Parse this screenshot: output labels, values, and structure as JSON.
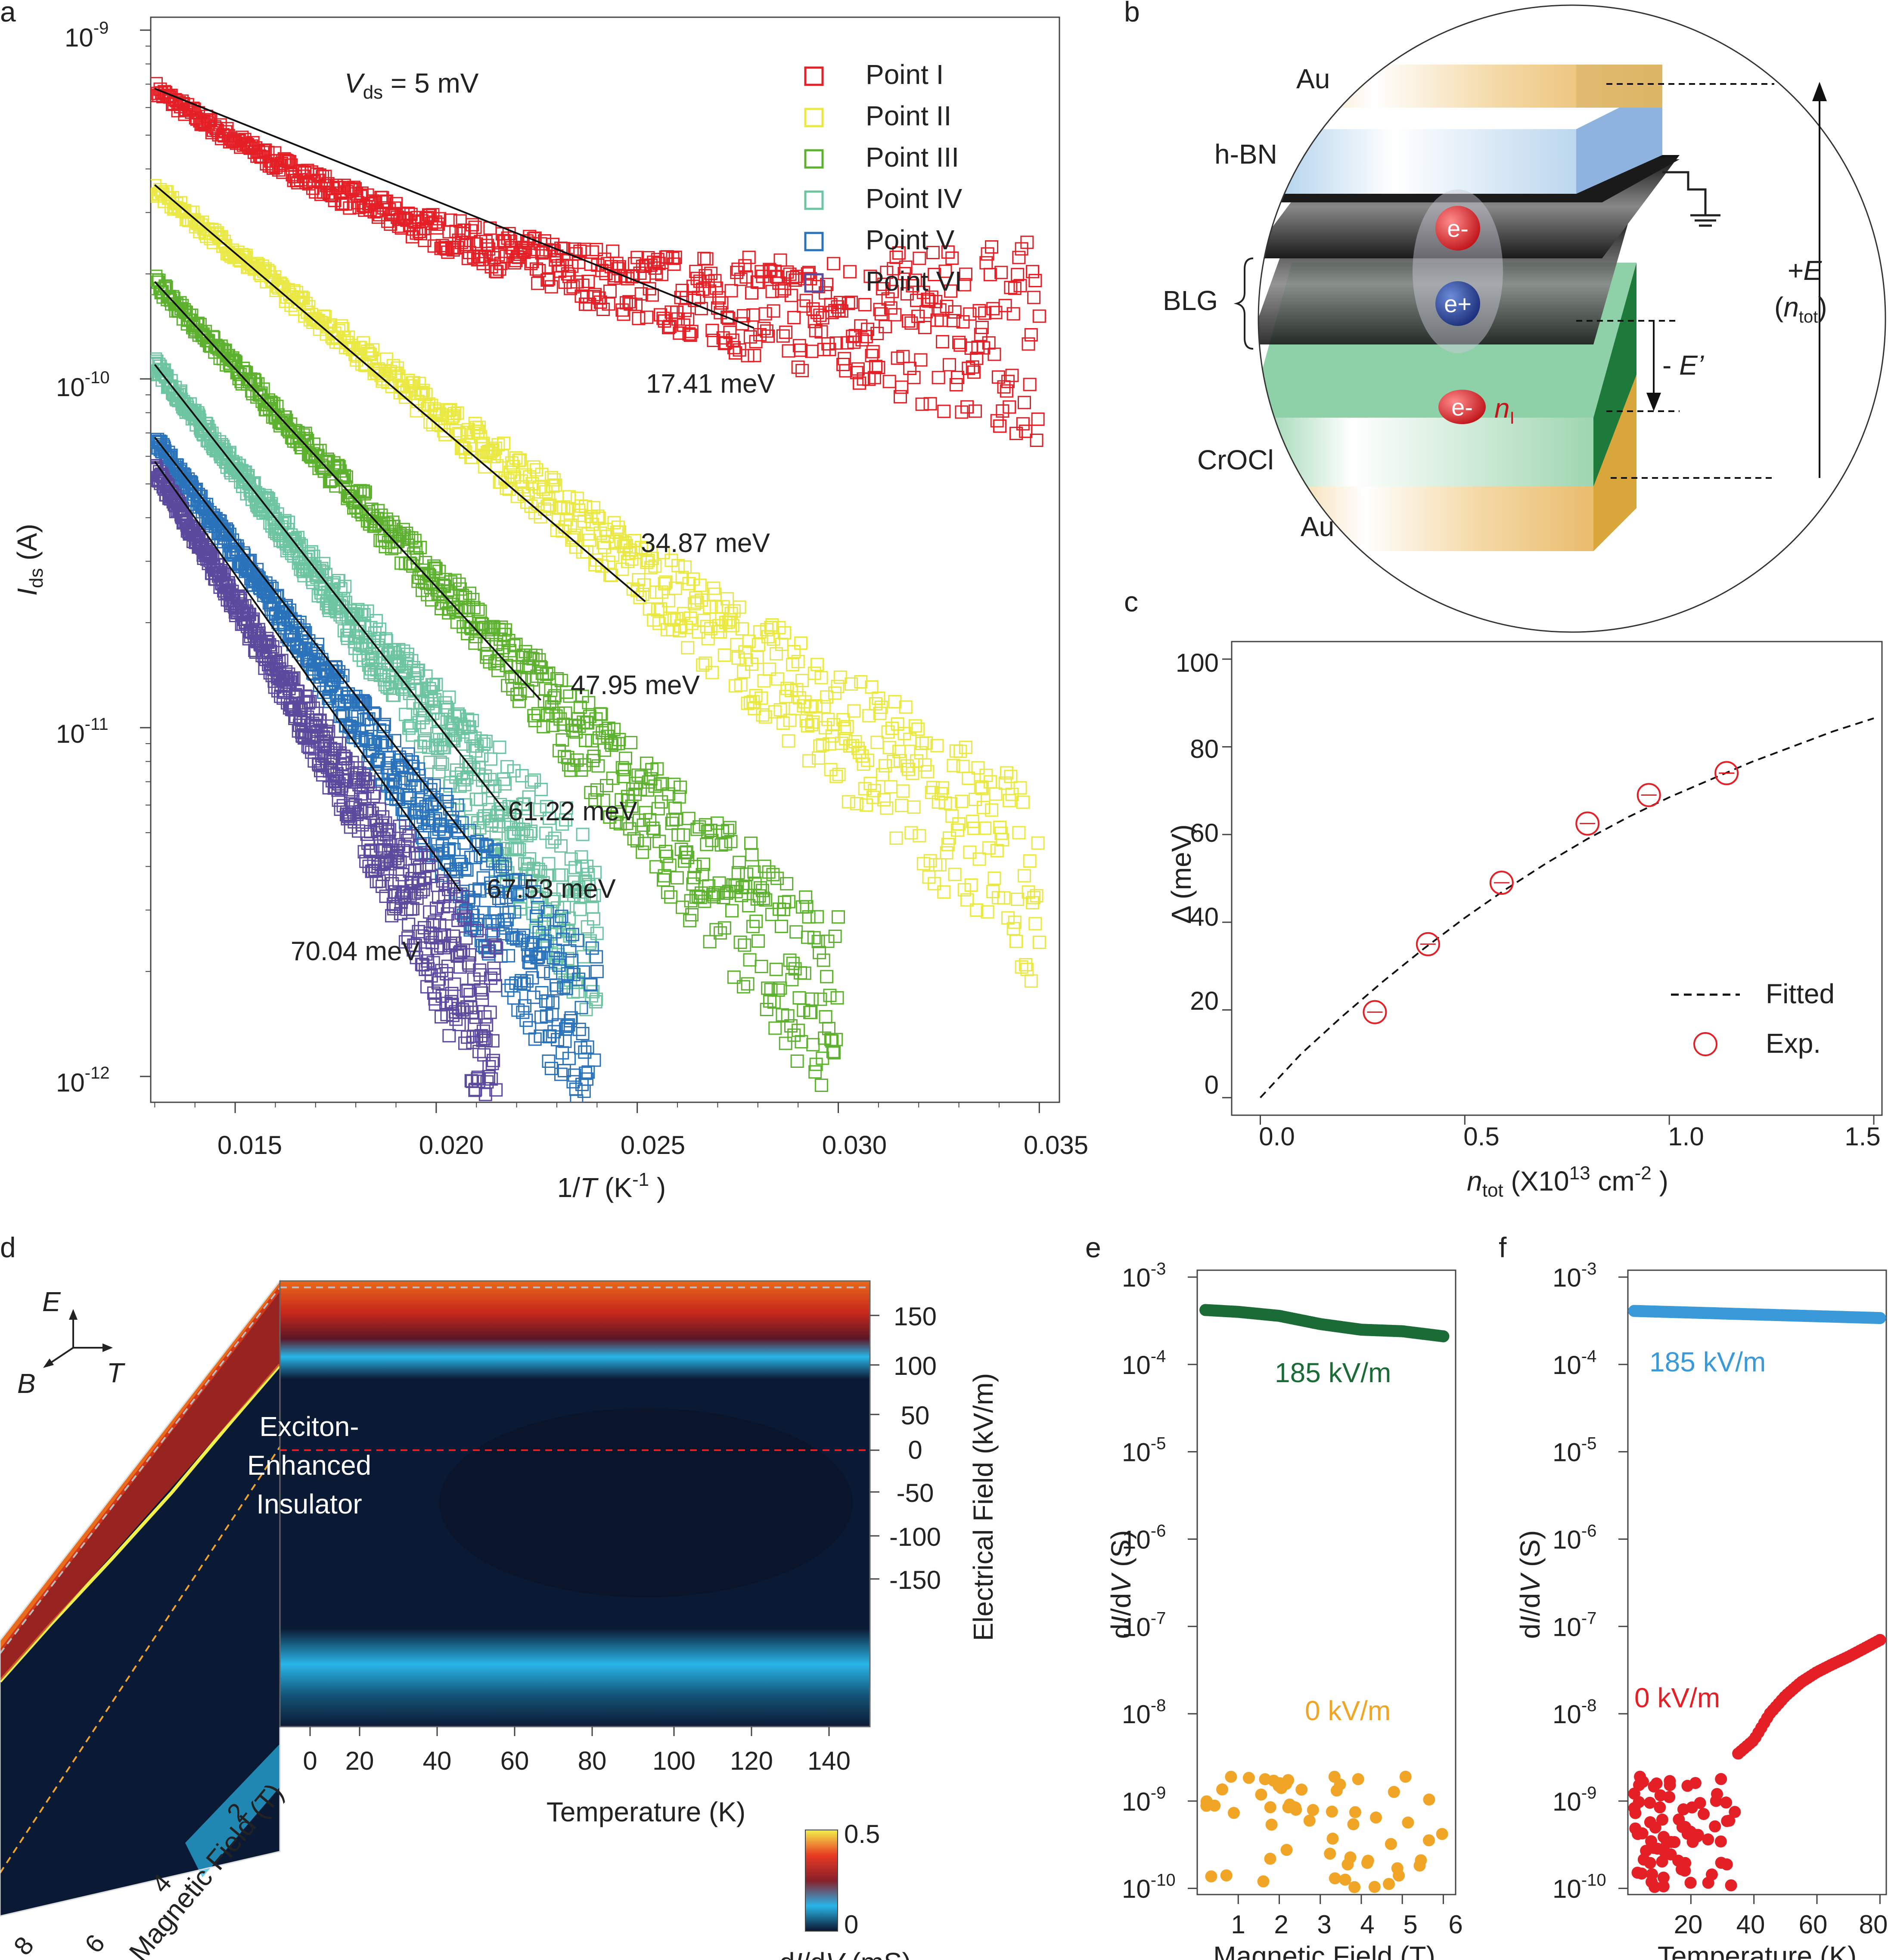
{
  "chart_data": [
    {
      "panel": "a",
      "type": "scatter",
      "title": "Vds = 5 mV",
      "title_var": "V",
      "title_sub": "ds",
      "title_rest": " = 5 mV",
      "xlabel": "1/T (K⁻¹)",
      "xlabel_pre": "1/",
      "xlabel_var": "T",
      "xlabel_unit": " (K",
      "xlabel_sup": "-1",
      "xlabel_end": " )",
      "ylabel": "Ids (A)",
      "ylabel_var": "I",
      "ylabel_sub": "ds",
      "ylabel_unit": " (A)",
      "xscale": "linear",
      "yscale": "log",
      "xlim": [
        0.0129,
        0.0355
      ],
      "ylim": [
        9e-13,
        1.1e-09
      ],
      "xticks": [
        0.015,
        0.02,
        0.025,
        0.03,
        0.035
      ],
      "xtick_labels": [
        "0.015",
        "0.020",
        "0.025",
        "0.030",
        "0.035"
      ],
      "yticks": [
        1e-09,
        1e-10,
        1e-11,
        1e-12
      ],
      "ytick_base": [
        "10",
        "10",
        "10",
        "10"
      ],
      "ytick_exp": [
        "-9",
        "-10",
        "-11",
        "-12"
      ],
      "series": [
        {
          "name": "Point I",
          "color": "#e41f26",
          "x_start": 0.013,
          "x_end": 0.035,
          "y_start": 6.8e-10,
          "y_end_exp": 1.05e-10,
          "fit_x": [
            0.013,
            0.0279
          ],
          "fit_y": [
            6.8e-10,
            1.4e-10
          ],
          "Ea_label": "17.41 meV",
          "curve": "sat"
        },
        {
          "name": "Point II",
          "color": "#eae842",
          "x_start": 0.013,
          "x_end": 0.035,
          "y_start": 3.5e-10,
          "y_end_exp": 3.5e-12,
          "fit_x": [
            0.013,
            0.0252
          ],
          "fit_y": [
            3.6e-10,
            2.3e-11
          ],
          "Ea_label": "34.87 meV",
          "curve": "lin"
        },
        {
          "name": "Point III",
          "color": "#5cb12e",
          "x_start": 0.013,
          "x_end": 0.03,
          "y_start": 1.9e-10,
          "y_end_exp": 1.5e-12,
          "fit_x": [
            0.013,
            0.0226
          ],
          "fit_y": [
            1.9e-10,
            1.2e-11
          ],
          "Ea_label": "47.95 meV",
          "curve": "lin"
        },
        {
          "name": "Point IV",
          "color": "#6cc4a0",
          "x_start": 0.013,
          "x_end": 0.024,
          "y_start": 1.1e-10,
          "y_end_exp": 2.5e-12,
          "fit_x": [
            0.013,
            0.0217
          ],
          "fit_y": [
            1.1e-10,
            5.8e-12
          ],
          "Ea_label": "61.22 meV",
          "curve": "lin"
        },
        {
          "name": "Point V",
          "color": "#2a73bb",
          "x_start": 0.013,
          "x_end": 0.024,
          "y_start": 6.7e-11,
          "y_end_exp": 1.2e-12,
          "fit_x": [
            0.013,
            0.0211
          ],
          "fit_y": [
            6.8e-11,
            4.3e-12
          ],
          "Ea_label": "67.53 meV",
          "curve": "lin"
        },
        {
          "name": "Point VI",
          "color": "#5b4a9e",
          "x_start": 0.013,
          "x_end": 0.0215,
          "y_start": 5.5e-11,
          "y_end_exp": 1.3e-12,
          "fit_x": [
            0.013,
            0.0206
          ],
          "fit_y": [
            5.8e-11,
            3.4e-12
          ],
          "Ea_label": "70.04 meV",
          "curve": "lin"
        }
      ]
    },
    {
      "panel": "c",
      "type": "scatter",
      "xlabel": "ntot (X10^13 cm^-2)",
      "xlabel_var": "n",
      "xlabel_sub": "tot",
      "xlabel_a": " (X10",
      "xlabel_sup1": "13",
      "xlabel_b": " cm",
      "xlabel_sup2": "-2",
      "xlabel_c": " )",
      "ylabel": "Δ (meV)",
      "xlim": [
        -0.07,
        1.52
      ],
      "ylim": [
        -4,
        104
      ],
      "xticks": [
        0.0,
        0.5,
        1.0,
        1.5
      ],
      "xtick_labels": [
        "0.0",
        "0.5",
        "1.0",
        "1.5"
      ],
      "yticks": [
        0,
        20,
        40,
        60,
        80,
        100
      ],
      "ytick_labels": [
        "0",
        "20",
        "40",
        "60",
        "80",
        "100"
      ],
      "series": [
        {
          "name": "Fitted",
          "style": "dashed",
          "color": "#111111",
          "x": [
            0.0,
            0.1,
            0.2,
            0.3,
            0.4,
            0.5,
            0.6,
            0.7,
            0.8,
            0.9,
            1.0,
            1.1,
            1.2,
            1.3,
            1.4,
            1.5
          ],
          "y": [
            0,
            10,
            18.5,
            26.5,
            34,
            41,
            47.5,
            53.5,
            59,
            64,
            68.5,
            72.5,
            76.5,
            80,
            83.5,
            86.5
          ]
        },
        {
          "name": "Exp.",
          "style": "open-circle",
          "color": "#e41f26",
          "x": [
            0.28,
            0.41,
            0.59,
            0.8,
            0.95,
            1.14
          ],
          "y": [
            19.5,
            35.0,
            49.0,
            62.5,
            69.0,
            74.0
          ]
        }
      ]
    },
    {
      "panel": "d",
      "type": "heatmap",
      "xlabel": "Temperature (K)",
      "ylabel": "Electrical Field (kV/m)",
      "zlabel_side": "Magnetic Field (T)",
      "xticks": [
        0,
        20,
        40,
        60,
        80,
        100,
        120,
        140
      ],
      "xtick_labels": [
        "0",
        "20",
        "40",
        "60",
        "80",
        "100",
        "120",
        "140"
      ],
      "yticks": [
        150,
        100,
        50,
        0,
        -50,
        -100,
        -150
      ],
      "ytick_labels": [
        "150",
        "100",
        "50",
        "0",
        "-50",
        "-100",
        "-150"
      ],
      "side_ticks": [
        "2",
        "4",
        "6",
        "8"
      ],
      "colorbar": {
        "label": "dI/dV (mS)",
        "label_pre": "d",
        "label_I": "I",
        "label_mid": "/d",
        "label_V": "V",
        "label_unit": " (mS)",
        "min_label": "0",
        "max_label": "0.5"
      },
      "annotation": [
        "Exciton-",
        "Enhanced",
        "Insulator"
      ],
      "axes_labels": {
        "E": "E",
        "B": "B",
        "T": "T"
      }
    },
    {
      "panel": "e",
      "type": "scatter",
      "xlabel": "Magnetic Field (T)",
      "ylabel": "dI/dV (S)",
      "ylabel_pre": "d",
      "ylabel_I": "I",
      "ylabel_mid": "/d",
      "ylabel_V": "V",
      "ylabel_unit": " (S)",
      "yscale": "log",
      "xlim": [
        0.0,
        6.3
      ],
      "ylim": [
        8.5e-11,
        0.0012
      ],
      "xticks": [
        1,
        2,
        3,
        4,
        5,
        6
      ],
      "xtick_labels": [
        "1",
        "2",
        "3",
        "4",
        "5",
        "6"
      ],
      "ytick_exp": [
        "-3",
        "-4",
        "-5",
        "-6",
        "-7",
        "-8",
        "-9",
        "-10"
      ],
      "series": [
        {
          "name": "185 kV/m",
          "color": "#1b6b36",
          "x": [
            0.2,
            1.0,
            2.0,
            3.0,
            4.0,
            5.0,
            6.0
          ],
          "y": [
            0.00042,
            0.0004,
            0.00036,
            0.00029,
            0.00025,
            0.00024,
            0.00021
          ]
        },
        {
          "name": "0 kV/m",
          "color": "#f0a526",
          "x_range": [
            0.2,
            6.0
          ],
          "y_range": [
            1e-10,
            1.9e-09
          ]
        }
      ]
    },
    {
      "panel": "f",
      "type": "scatter",
      "xlabel": "Temperature (K)",
      "ylabel": "dI/dV (S)",
      "ylabel_pre": "d",
      "ylabel_I": "I",
      "ylabel_mid": "/d",
      "ylabel_V": "V",
      "ylabel_unit": " (S)",
      "yscale": "log",
      "xlim": [
        0,
        82
      ],
      "ylim": [
        8.5e-11,
        0.0012
      ],
      "xticks": [
        20,
        40,
        60,
        80
      ],
      "xtick_labels": [
        "20",
        "40",
        "60",
        "80"
      ],
      "ytick_exp": [
        "-3",
        "-4",
        "-5",
        "-6",
        "-7",
        "-8",
        "-9",
        "-10"
      ],
      "series": [
        {
          "name": "185 kV/m",
          "color": "#3a9ad9",
          "x": [
            2,
            80
          ],
          "y": [
            0.00041,
            0.00034
          ]
        },
        {
          "name": "0 kV/m",
          "color": "#e41f26",
          "x": [
            35,
            40,
            45,
            50,
            55,
            60,
            65,
            70,
            75,
            80
          ],
          "y": [
            3.5e-09,
            5e-09,
            1e-08,
            1.6e-08,
            2.3e-08,
            3e-08,
            3.7e-08,
            4.5e-08,
            5.6e-08,
            7e-08
          ],
          "noisy_range_x": [
            2,
            34
          ],
          "noisy_range_y": [
            1e-10,
            1.9e-09
          ]
        }
      ]
    }
  ],
  "panel_b": {
    "layer_labels": [
      "Au",
      "h-BN",
      "BLG",
      "CrOCl",
      "Au"
    ],
    "charges": [
      "e-",
      "e+",
      "e-"
    ],
    "n_var": "n",
    "n_sub": "I",
    "field_E_sign": "+",
    "field_E": "E",
    "n_tot_open": "(",
    "n_tot_var": "n",
    "n_tot_sub": "tot",
    "n_tot_close": ")",
    "field_Eprime_pre": "- ",
    "field_Eprime": "E’"
  },
  "panel_letters": [
    "a",
    "b",
    "c",
    "d",
    "e",
    "f"
  ],
  "colors": {
    "red": "#e41f26",
    "navy": "#0a1a33",
    "cyan": "#29b6e8"
  }
}
